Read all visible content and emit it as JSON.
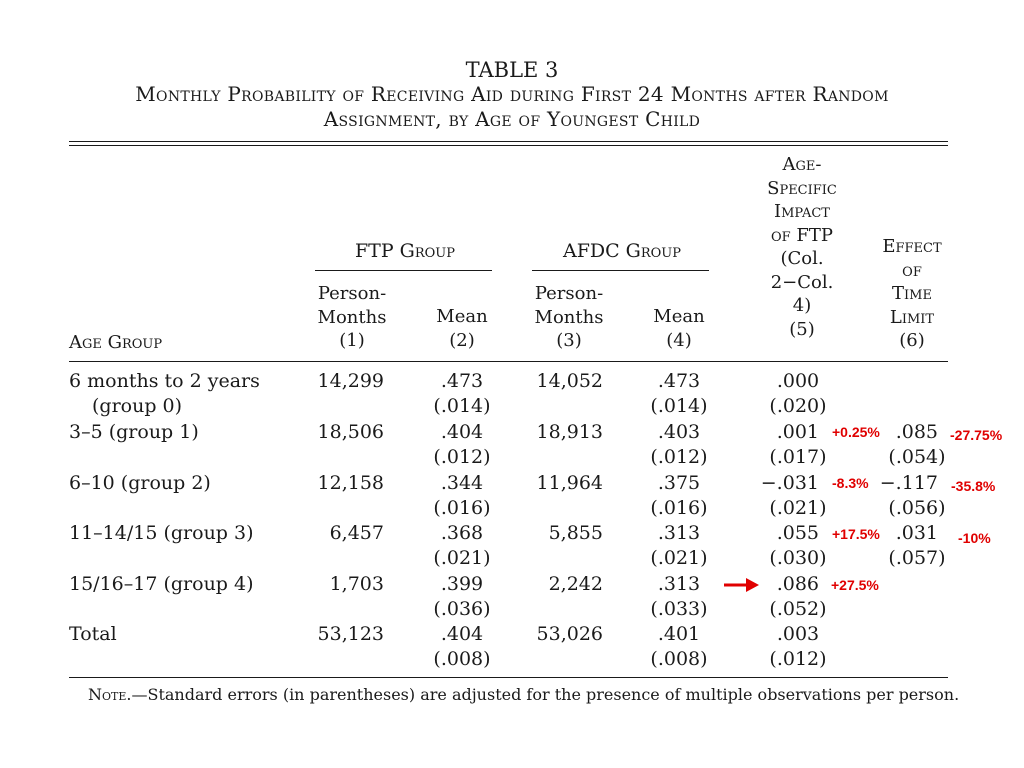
{
  "table": {
    "title": "TABLE 3",
    "subtitle_line1": "Monthly Probability of Receiving Aid during First 24 Months after Random",
    "subtitle_line2": "Assignment, by Age of Youngest Child",
    "groups": {
      "ftp": "FTP Group",
      "afdc": "AFDC Group"
    },
    "col_headers": {
      "age_group": "Age Group",
      "c1": [
        "Person-",
        "Months",
        "(1)"
      ],
      "c2": [
        "Mean",
        "(2)"
      ],
      "c3": [
        "Person-",
        "Months",
        "(3)"
      ],
      "c4": [
        "Mean",
        "(4)"
      ],
      "c5": [
        "Age-",
        "Specific",
        "Impact",
        "of FTP",
        "(Col.",
        "2−Col.",
        "4)",
        "(5)"
      ],
      "c6": [
        "Effect",
        "of",
        "Time",
        "Limit",
        "(6)"
      ]
    },
    "rows": [
      {
        "label": "6 months to 2 years",
        "label2": "(group 0)",
        "c1": "14,299",
        "c2": ".473",
        "c2se": "(.014)",
        "c3": "14,052",
        "c4": ".473",
        "c4se": "(.014)",
        "c5": ".000",
        "c5se": "(.020)",
        "c6": "",
        "c6se": ""
      },
      {
        "label": "3–5 (group 1)",
        "label2": "",
        "c1": "18,506",
        "c2": ".404",
        "c2se": "(.012)",
        "c3": "18,913",
        "c4": ".403",
        "c4se": "(.012)",
        "c5": ".001",
        "c5se": "(.017)",
        "c6": ".085",
        "c6se": "(.054)"
      },
      {
        "label": "6–10 (group 2)",
        "label2": "",
        "c1": "12,158",
        "c2": ".344",
        "c2se": "(.016)",
        "c3": "11,964",
        "c4": ".375",
        "c4se": "(.016)",
        "c5": "−.031",
        "c5se": "(.021)",
        "c6": "−.117",
        "c6se": "(.056)"
      },
      {
        "label": "11–14/15 (group 3)",
        "label2": "",
        "c1": "6,457",
        "c2": ".368",
        "c2se": "(.021)",
        "c3": "5,855",
        "c4": ".313",
        "c4se": "(.021)",
        "c5": ".055",
        "c5se": "(.030)",
        "c6": ".031",
        "c6se": "(.057)"
      },
      {
        "label": "15/16–17 (group 4)",
        "label2": "",
        "c1": "1,703",
        "c2": ".399",
        "c2se": "(.036)",
        "c3": "2,242",
        "c4": ".313",
        "c4se": "(.033)",
        "c5": ".086",
        "c5se": "(.052)",
        "c6": "",
        "c6se": ""
      },
      {
        "label": "Total",
        "label2": "",
        "c1": "53,123",
        "c2": ".404",
        "c2se": "(.008)",
        "c3": "53,026",
        "c4": ".401",
        "c4se": "(.008)",
        "c5": ".003",
        "c5se": "(.012)",
        "c6": "",
        "c6se": ""
      }
    ],
    "note_label": "Note.",
    "note_text": "—Standard errors (in parentheses) are adjusted for the presence of multiple observations per person."
  },
  "annotations": {
    "color": "#e00000",
    "c5_marks": [
      "+0.25%",
      "-8.3%",
      "+17.5%",
      "+27.5%"
    ],
    "c6_marks": [
      "-27.75%",
      "-35.8%",
      "-10%"
    ],
    "arrow_icon": "right-arrow-icon"
  }
}
